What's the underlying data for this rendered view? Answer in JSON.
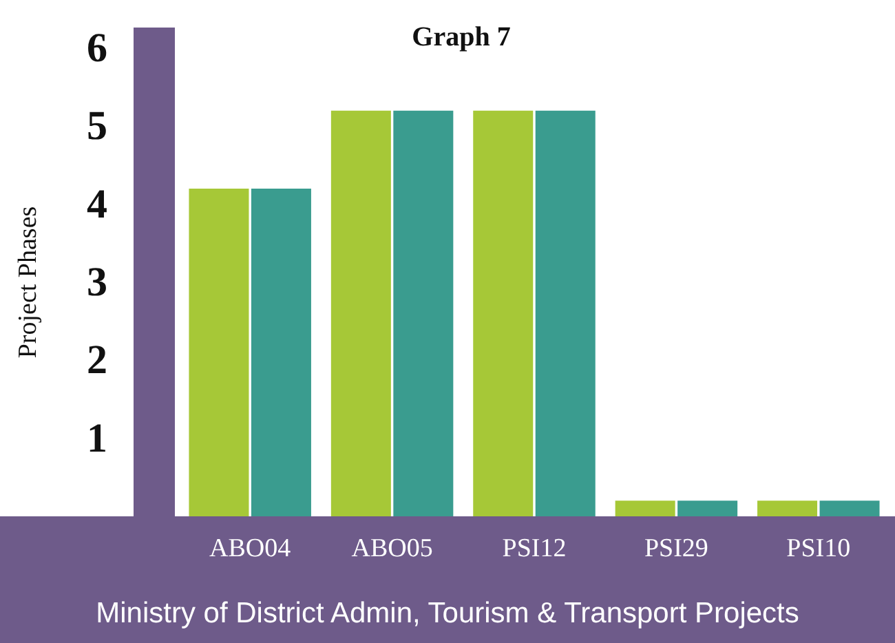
{
  "chart_data": {
    "type": "bar",
    "title": "Graph 7",
    "ylabel": "Project Phases",
    "annotations": [
      "Ministry of District Admin, Tourism & Transport Projects"
    ],
    "categories": [
      "ABO04",
      "ABO05",
      "PSI12",
      "PSI29",
      "PSI10"
    ],
    "series": [
      {
        "color": "#a6c837",
        "values": [
          4.2,
          5.2,
          5.2,
          0.2,
          0.2
        ]
      },
      {
        "color": "#3a9c8f",
        "values": [
          4.2,
          5.2,
          5.2,
          0.2,
          0.2
        ]
      }
    ],
    "ylim": [
      0,
      6
    ],
    "yticks": [
      1,
      2,
      3,
      4,
      5,
      6
    ],
    "grid": false
  }
}
